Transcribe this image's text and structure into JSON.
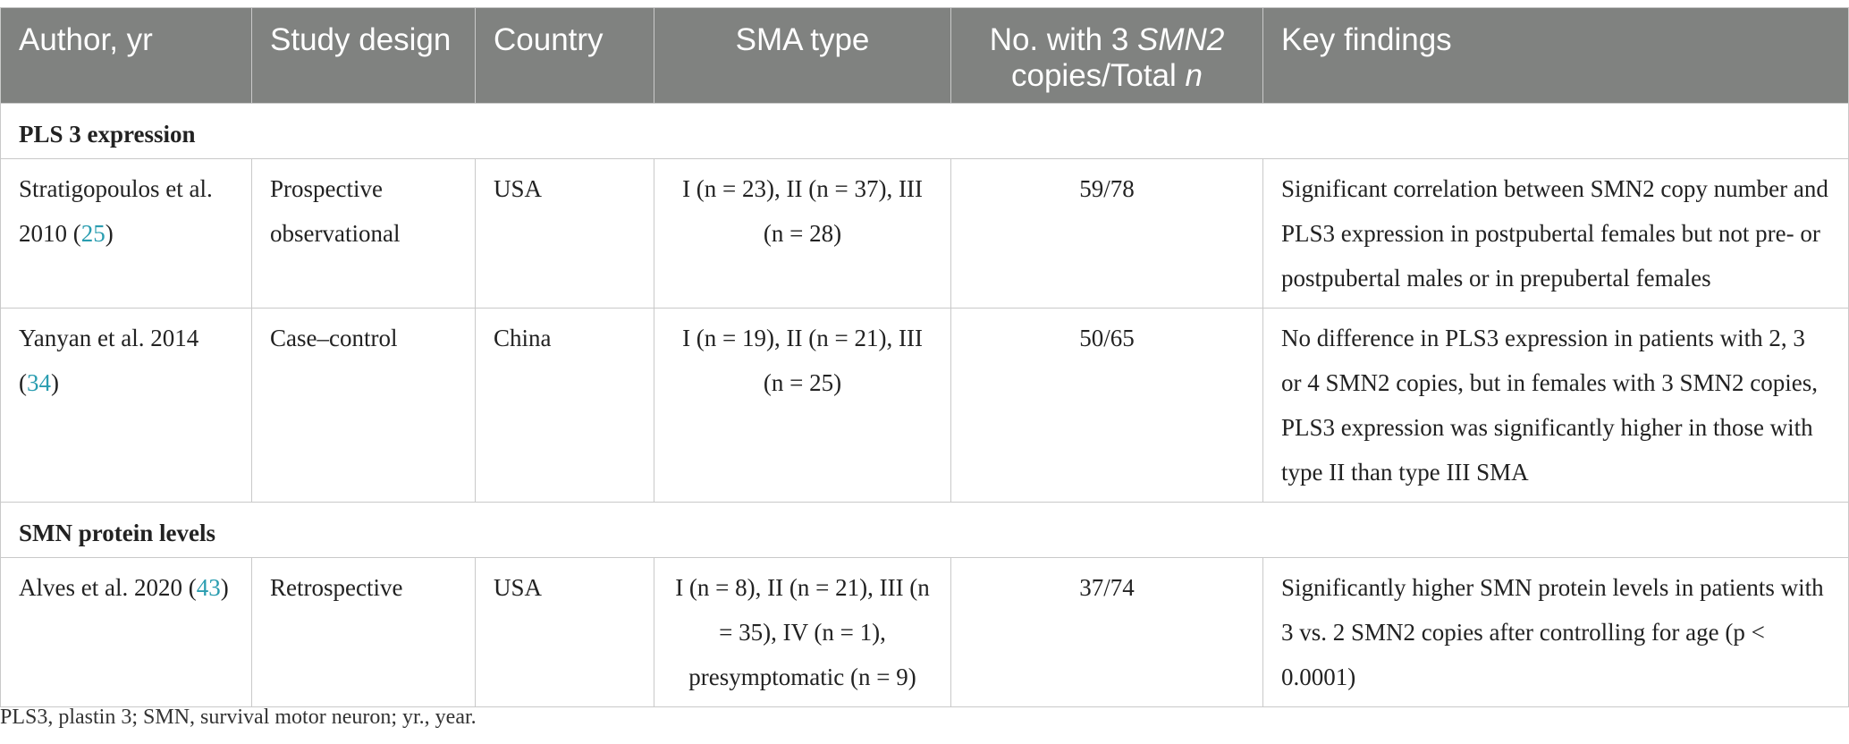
{
  "header": {
    "author": "Author, yr",
    "design": "Study design",
    "country": "Country",
    "sma_type": "SMA type",
    "copies_a": "No. with 3 ",
    "copies_gene": "SMN2",
    "copies_b": "copies/Total ",
    "copies_n": "n",
    "findings": "Key findings"
  },
  "sections": [
    {
      "title": "PLS 3 expression",
      "rows": [
        {
          "author": "Stratigopoulos et al. 2010 (",
          "ref": "25",
          "author_end": ")",
          "design": "Prospective observational",
          "country": "USA",
          "sma_type": "I (n = 23), II (n = 37), III (n = 28)",
          "copies": "59/78",
          "findings": "Significant correlation between SMN2 copy number and PLS3 expression in postpubertal females but not pre- or postpubertal males or in prepubertal females"
        },
        {
          "author": "Yanyan et al. 2014 (",
          "ref": "34",
          "author_end": ")",
          "design": "Case–control",
          "country": "China",
          "sma_type": "I (n = 19), II (n = 21), III (n = 25)",
          "copies": "50/65",
          "findings": "No difference in PLS3 expression in patients with 2, 3 or 4 SMN2 copies, but in females with 3 SMN2 copies, PLS3 expression was significantly higher in those with type II than type III SMA"
        }
      ]
    },
    {
      "title": "SMN protein levels",
      "rows": [
        {
          "author": "Alves et al. 2020 (",
          "ref": "43",
          "author_end": ")",
          "design": "Retrospective",
          "country": "USA",
          "sma_type": "I (n = 8), II (n = 21), III (n = 35), IV (n = 1), presymptomatic (n = 9)",
          "copies": "37/74",
          "findings": "Significantly higher SMN protein levels in patients with 3 vs. 2 SMN2 copies after controlling for age (p < 0.0001)"
        }
      ]
    }
  ],
  "footnote": "PLS3, plastin 3; SMN, survival motor neuron; yr., year.",
  "colors": {
    "header_bg": "#808280",
    "reference_link": "#2a9db0",
    "border": "#c9c9c9"
  }
}
